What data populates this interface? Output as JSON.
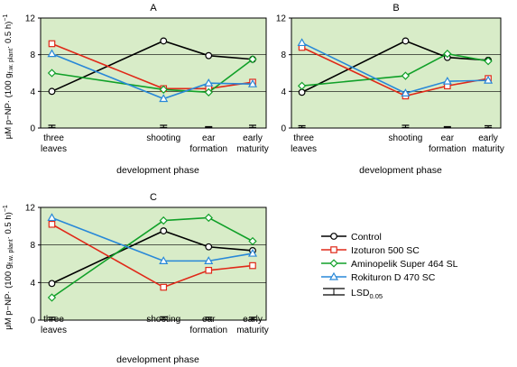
{
  "chart_data": [
    {
      "type": "line",
      "title": "A",
      "categories": [
        "three leaves",
        "shooting",
        "ear formation",
        "early maturity"
      ],
      "xlabel": "development phase",
      "ylabel": "μM p−NP· (100 g f.w. plant · 0.5 h)−1",
      "ylim": [
        0,
        12
      ],
      "yticks": [
        0,
        4,
        8,
        12
      ],
      "grid": "horizontal",
      "series": [
        {
          "name": "Control",
          "color": "#000000",
          "marker": "circle",
          "values": [
            4.0,
            9.5,
            7.9,
            7.5
          ]
        },
        {
          "name": "Izoturon 500 SC",
          "color": "#e02818",
          "marker": "square",
          "values": [
            9.2,
            4.3,
            4.3,
            5.0
          ]
        },
        {
          "name": "Aminopelik Super 464 SL",
          "color": "#10a028",
          "marker": "diamond",
          "values": [
            6.0,
            4.2,
            3.9,
            7.5
          ]
        },
        {
          "name": "Rokituron D 470 SC",
          "color": "#2888d8",
          "marker": "triangle",
          "values": [
            8.1,
            3.2,
            4.9,
            4.8
          ]
        }
      ],
      "lsd": [
        0.3,
        0.3,
        0.15,
        0.3
      ]
    },
    {
      "type": "line",
      "title": "B",
      "categories": [
        "three leaves",
        "shooting",
        "ear formation",
        "early maturity"
      ],
      "xlabel": "development phase",
      "ylabel": "",
      "ylim": [
        0,
        12
      ],
      "yticks": [
        0,
        4,
        8,
        12
      ],
      "grid": "horizontal",
      "series": [
        {
          "name": "Control",
          "color": "#000000",
          "marker": "circle",
          "values": [
            3.9,
            9.5,
            7.7,
            7.4
          ]
        },
        {
          "name": "Izoturon 500 SC",
          "color": "#e02818",
          "marker": "square",
          "values": [
            8.8,
            3.5,
            4.6,
            5.4
          ]
        },
        {
          "name": "Aminopelik Super 464 SL",
          "color": "#10a028",
          "marker": "diamond",
          "values": [
            4.6,
            5.7,
            8.1,
            7.3
          ]
        },
        {
          "name": "Rokituron D 470 SC",
          "color": "#2888d8",
          "marker": "triangle",
          "values": [
            9.3,
            3.8,
            5.1,
            5.2
          ]
        }
      ],
      "lsd": [
        0.25,
        0.3,
        0.15,
        0.25
      ]
    },
    {
      "type": "line",
      "title": "C",
      "categories": [
        "three leaves",
        "shooting",
        "ear formation",
        "early maturity"
      ],
      "xlabel": "development phase",
      "ylabel": "μM p−NP· (100 g f.w. plant · 0.5 h)−1",
      "ylim": [
        0,
        12
      ],
      "yticks": [
        0,
        4,
        8,
        12
      ],
      "grid": "horizontal",
      "series": [
        {
          "name": "Control",
          "color": "#000000",
          "marker": "circle",
          "values": [
            3.9,
            9.5,
            7.8,
            7.4
          ]
        },
        {
          "name": "Izoturon 500 SC",
          "color": "#e02818",
          "marker": "square",
          "values": [
            10.2,
            3.5,
            5.3,
            5.8
          ]
        },
        {
          "name": "Aminopelik Super 464 SL",
          "color": "#10a028",
          "marker": "diamond",
          "values": [
            2.4,
            10.6,
            10.9,
            8.4
          ]
        },
        {
          "name": "Rokituron D 470 SC",
          "color": "#2888d8",
          "marker": "triangle",
          "values": [
            10.9,
            6.3,
            6.3,
            7.1
          ]
        }
      ],
      "lsd": [
        0.3,
        0.35,
        0.3,
        0.3
      ]
    }
  ],
  "legend": {
    "entries": [
      "Control",
      "Izoturon 500 SC",
      "Aminopelik Super 464 SL",
      "Rokituron D 470 SC"
    ],
    "lsd_label": "LSD",
    "lsd_subscript": "0.05",
    "placement": "bottom-right"
  },
  "axis_text": {
    "ylabel_main": "μM p−NP· (100 g",
    "ylabel_sub": "f.w. plant",
    "ylabel_tail": "· 0.5 h)",
    "ylabel_sup": "−1",
    "cat_lines": [
      [
        "three",
        "leaves"
      ],
      [
        "shooting"
      ],
      [
        "ear",
        "formation"
      ],
      [
        "early",
        "maturity"
      ]
    ]
  }
}
